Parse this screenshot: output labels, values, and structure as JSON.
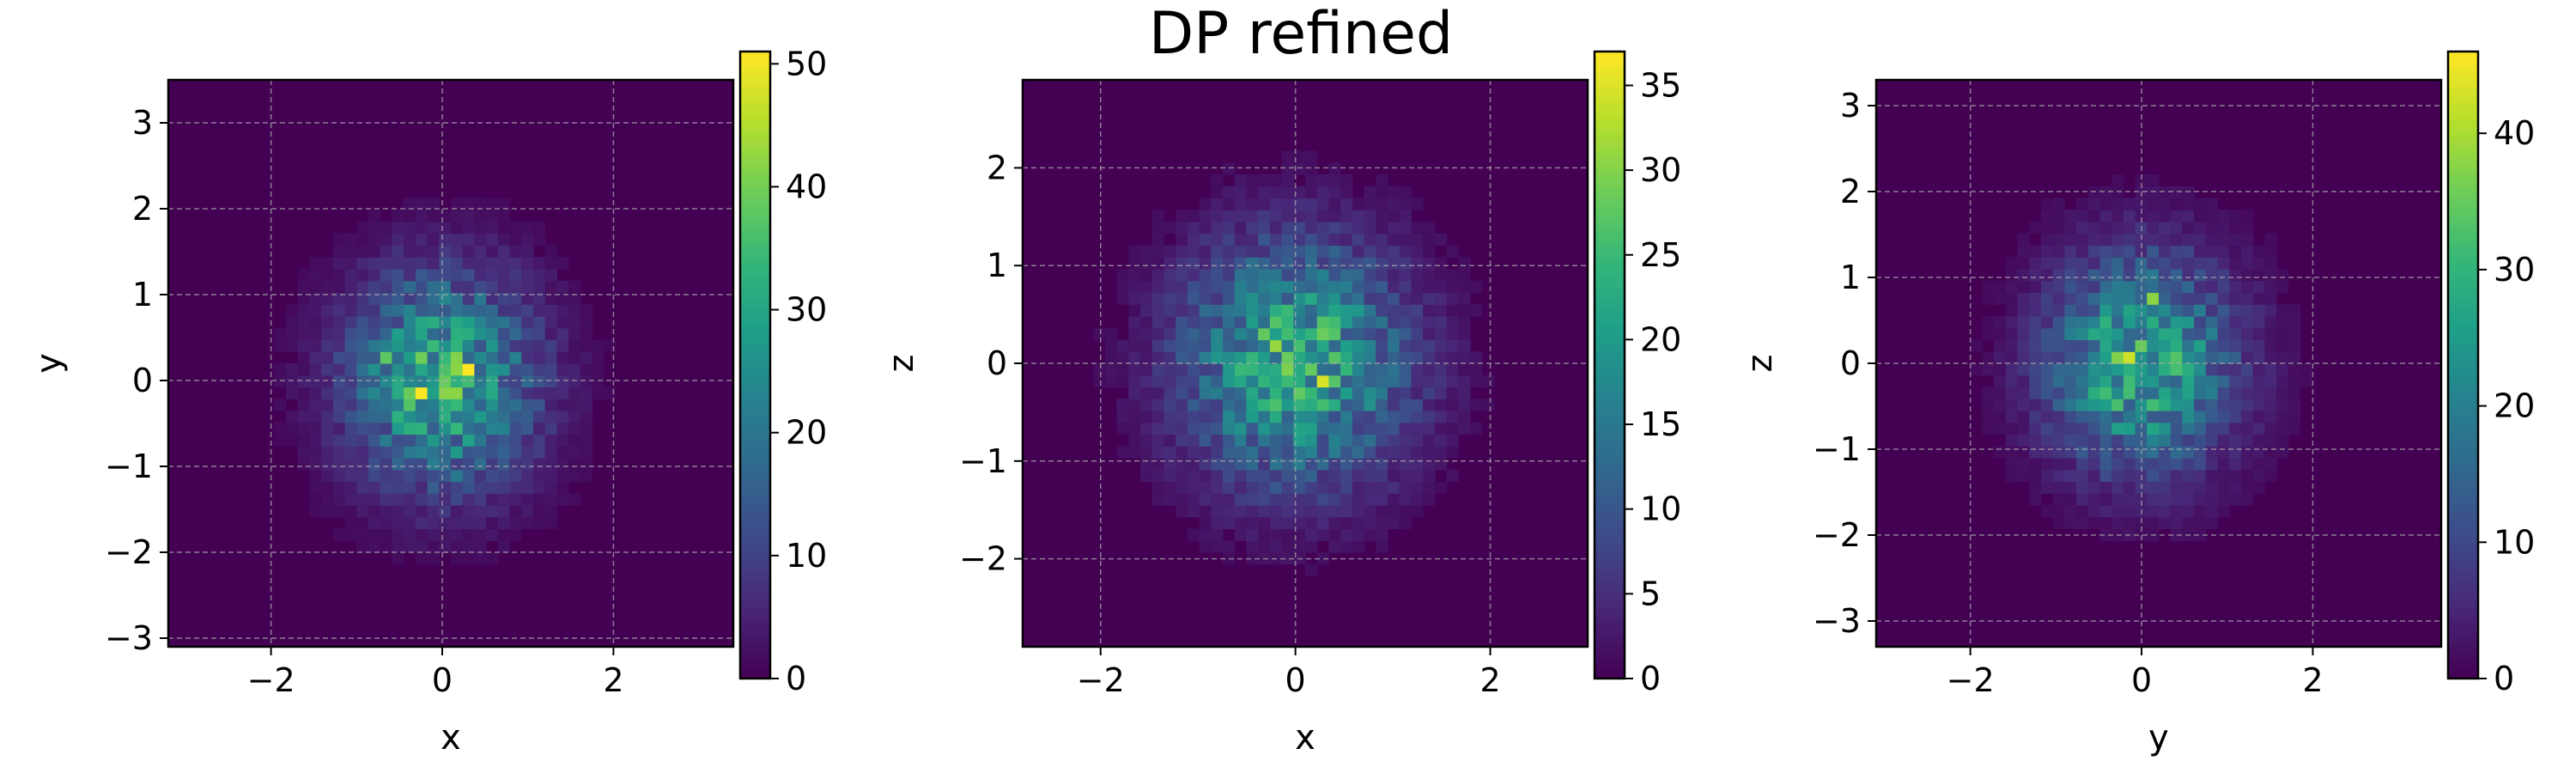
{
  "chart_data": {
    "type": "heatmap",
    "title": "DP refined",
    "colormap": "viridis",
    "grid": true,
    "panels": [
      {
        "xlabel": "x",
        "ylabel": "y",
        "xlim": [
          -3.2,
          3.4
        ],
        "ylim": [
          -3.1,
          3.5
        ],
        "xticks": [
          -2,
          0,
          2
        ],
        "yticks": [
          -3,
          -2,
          -1,
          0,
          1,
          2,
          3
        ],
        "colorbar": {
          "min": 0,
          "max": 51,
          "ticks": [
            0,
            10,
            20,
            30,
            40,
            50
          ]
        },
        "peak": 51,
        "spread": [
          0.75,
          0.85
        ],
        "bins": 48,
        "seed": 11,
        "hotspots": [
          {
            "x": -0.25,
            "y": -0.15,
            "v": 51
          },
          {
            "x": 0.2,
            "y": 0.6,
            "v": 46
          },
          {
            "x": 0.35,
            "y": 0.15,
            "v": 44
          },
          {
            "x": -0.6,
            "y": 0.3,
            "v": 38
          },
          {
            "x": 0.1,
            "y": -1.1,
            "v": 22
          }
        ]
      },
      {
        "xlabel": "x",
        "ylabel": "z",
        "xlim": [
          -2.8,
          3.0
        ],
        "ylim": [
          -2.9,
          2.9
        ],
        "xticks": [
          -2,
          0,
          2
        ],
        "yticks": [
          -2,
          -1,
          0,
          1,
          2
        ],
        "colorbar": {
          "min": 0,
          "max": 37,
          "ticks": [
            0,
            5,
            10,
            15,
            20,
            25,
            30,
            35
          ]
        },
        "peak": 37,
        "spread": [
          0.8,
          0.85
        ],
        "bins": 48,
        "seed": 23,
        "hotspots": [
          {
            "x": 0.15,
            "y": 0.0,
            "v": 37
          },
          {
            "x": -0.05,
            "y": 0.1,
            "v": 34
          },
          {
            "x": -0.55,
            "y": -0.15,
            "v": 32
          },
          {
            "x": 0.3,
            "y": -0.15,
            "v": 35
          },
          {
            "x": 0.05,
            "y": 0.5,
            "v": 26
          }
        ]
      },
      {
        "xlabel": "y",
        "ylabel": "z",
        "xlim": [
          -3.1,
          3.5
        ],
        "ylim": [
          -3.3,
          3.3
        ],
        "xticks": [
          -2,
          0,
          2
        ],
        "yticks": [
          -3,
          -2,
          -1,
          0,
          1,
          2,
          3
        ],
        "colorbar": {
          "min": 0,
          "max": 46,
          "ticks": [
            0,
            10,
            20,
            30,
            40
          ]
        },
        "peak": 46,
        "spread": [
          0.75,
          0.85
        ],
        "bins": 48,
        "seed": 37,
        "hotspots": [
          {
            "x": 0.55,
            "y": -0.1,
            "v": 46
          },
          {
            "x": -0.2,
            "y": 0.1,
            "v": 42
          },
          {
            "x": 0.15,
            "y": 0.7,
            "v": 40
          },
          {
            "x": -0.35,
            "y": -0.75,
            "v": 30
          },
          {
            "x": 0.4,
            "y": 0.2,
            "v": 38
          }
        ]
      }
    ]
  }
}
